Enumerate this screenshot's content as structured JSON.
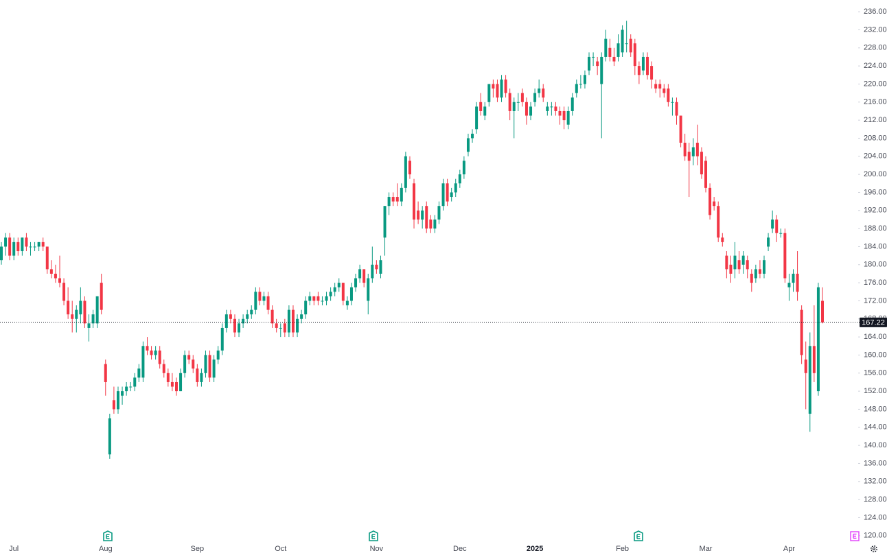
{
  "chart_data": {
    "type": "candlestick",
    "up_color": "#089981",
    "down_color": "#f23645",
    "grid": false,
    "ylim": [
      118.6,
      238.6
    ],
    "yticks": [
      {
        "value": 120,
        "label": "120.00"
      },
      {
        "value": 124,
        "label": "124.00"
      },
      {
        "value": 128,
        "label": "128.00"
      },
      {
        "value": 132,
        "label": "132.00"
      },
      {
        "value": 136,
        "label": "136.00"
      },
      {
        "value": 140,
        "label": "140.00"
      },
      {
        "value": 144,
        "label": "144.00"
      },
      {
        "value": 148,
        "label": "148.00"
      },
      {
        "value": 152,
        "label": "152.00"
      },
      {
        "value": 156,
        "label": "156.00"
      },
      {
        "value": 160,
        "label": "160.00"
      },
      {
        "value": 164,
        "label": "164.00"
      },
      {
        "value": 168,
        "label": "168.00"
      },
      {
        "value": 172,
        "label": "172.00"
      },
      {
        "value": 176,
        "label": "176.00"
      },
      {
        "value": 180,
        "label": "180.00"
      },
      {
        "value": 184,
        "label": "184.00"
      },
      {
        "value": 188,
        "label": "188.00"
      },
      {
        "value": 192,
        "label": "192.00"
      },
      {
        "value": 196,
        "label": "196.00"
      },
      {
        "value": 200,
        "label": "200.00"
      },
      {
        "value": 204,
        "label": "204.00"
      },
      {
        "value": 208,
        "label": "208.00"
      },
      {
        "value": 212,
        "label": "212.00"
      },
      {
        "value": 216,
        "label": "216.00"
      },
      {
        "value": 220,
        "label": "220.00"
      },
      {
        "value": 224,
        "label": "224.00"
      },
      {
        "value": 228,
        "label": "228.00"
      },
      {
        "value": 232,
        "label": "232.00"
      },
      {
        "value": 236,
        "label": "236.00"
      }
    ],
    "categories": [
      null,
      null,
      null,
      "Jul",
      null,
      null,
      null,
      null,
      null,
      null,
      null,
      null,
      null,
      null,
      null,
      null,
      null,
      null,
      null,
      null,
      null,
      null,
      null,
      null,
      null,
      "Aug",
      null,
      null,
      null,
      null,
      null,
      null,
      null,
      null,
      null,
      null,
      null,
      null,
      null,
      null,
      null,
      null,
      null,
      null,
      null,
      null,
      null,
      "Sep",
      null,
      null,
      null,
      null,
      null,
      null,
      null,
      null,
      null,
      null,
      null,
      null,
      null,
      null,
      null,
      null,
      null,
      null,
      null,
      "Oct",
      null,
      null,
      null,
      null,
      null,
      null,
      null,
      null,
      null,
      null,
      null,
      null,
      null,
      null,
      null,
      null,
      null,
      null,
      null,
      null,
      null,
      null,
      "Nov",
      null,
      null,
      null,
      null,
      null,
      null,
      null,
      null,
      null,
      null,
      null,
      null,
      null,
      null,
      null,
      null,
      null,
      null,
      null,
      "Dec",
      null,
      null,
      null,
      null,
      null,
      null,
      null,
      null,
      null,
      null,
      null,
      null,
      null,
      null,
      null,
      null,
      null,
      "2025",
      null,
      null,
      null,
      null,
      null,
      null,
      null,
      null,
      null,
      null,
      null,
      null,
      null,
      null,
      null,
      null,
      null,
      null,
      null,
      null,
      "Feb",
      null,
      null,
      null,
      null,
      null,
      null,
      null,
      null,
      null,
      null,
      null,
      null,
      null,
      null,
      null,
      null,
      null,
      null,
      null,
      "Mar",
      null,
      null,
      null,
      null,
      null,
      null,
      null,
      null,
      null,
      null,
      null,
      null,
      null,
      null,
      null,
      null,
      null,
      null,
      null,
      "Apr",
      null,
      null,
      null,
      null,
      null,
      null,
      null,
      null
    ],
    "ohlc": [
      [
        181,
        185,
        180,
        184
      ],
      [
        184,
        187,
        182,
        186
      ],
      [
        186,
        187,
        181,
        182
      ],
      [
        182,
        186,
        181,
        185
      ],
      [
        185,
        186,
        182,
        183
      ],
      [
        183,
        186,
        182,
        186
      ],
      [
        186,
        187,
        183,
        184
      ],
      [
        184,
        185,
        182,
        184
      ],
      [
        184,
        185,
        183,
        184
      ],
      [
        184,
        185,
        183,
        185
      ],
      [
        185,
        186,
        183,
        184
      ],
      [
        184,
        184,
        178,
        179
      ],
      [
        179,
        181,
        177,
        178
      ],
      [
        178,
        180,
        176,
        177
      ],
      [
        177,
        182,
        175,
        176
      ],
      [
        176,
        177,
        171,
        172
      ],
      [
        172,
        175,
        168,
        169
      ],
      [
        169,
        172,
        165,
        168
      ],
      [
        168,
        171,
        165,
        170
      ],
      [
        169,
        175,
        167,
        172
      ],
      [
        172,
        173,
        166,
        167
      ],
      [
        166,
        169,
        163,
        167
      ],
      [
        167,
        170,
        166,
        169
      ],
      [
        167,
        173,
        166,
        173
      ],
      [
        176,
        178,
        169,
        170
      ],
      [
        158,
        159,
        151,
        154
      ],
      [
        138,
        147,
        137,
        146
      ],
      [
        150,
        153,
        147,
        148
      ],
      [
        148,
        153,
        147,
        152
      ],
      [
        151,
        153,
        149,
        152
      ],
      [
        152,
        154,
        151,
        153
      ],
      [
        153,
        154,
        152,
        153
      ],
      [
        153,
        156,
        152,
        155
      ],
      [
        155,
        158,
        154,
        157
      ],
      [
        155,
        163,
        154,
        162
      ],
      [
        162,
        164,
        160,
        161
      ],
      [
        161,
        162,
        159,
        160
      ],
      [
        160,
        162,
        159,
        161
      ],
      [
        161,
        162,
        157,
        158
      ],
      [
        158,
        159,
        155,
        156
      ],
      [
        156,
        157,
        153,
        154
      ],
      [
        154,
        156,
        152,
        153
      ],
      [
        154,
        155,
        151,
        152
      ],
      [
        152,
        157,
        152,
        156
      ],
      [
        156,
        161,
        155,
        160
      ],
      [
        160,
        161,
        158,
        159
      ],
      [
        159,
        160,
        156,
        157
      ],
      [
        157,
        158,
        153,
        154
      ],
      [
        154,
        157,
        153,
        156
      ],
      [
        156,
        161,
        155,
        160
      ],
      [
        160,
        161,
        154,
        155
      ],
      [
        155,
        160,
        154,
        159
      ],
      [
        159,
        162,
        158,
        161
      ],
      [
        161,
        167,
        160,
        166
      ],
      [
        166,
        170,
        165,
        169
      ],
      [
        169,
        170,
        167,
        168
      ],
      [
        168,
        169,
        164,
        165
      ],
      [
        165,
        168,
        164,
        167
      ],
      [
        167,
        169,
        166,
        168
      ],
      [
        168,
        170,
        167,
        169
      ],
      [
        169,
        171,
        168,
        170
      ],
      [
        170,
        175,
        169,
        174
      ],
      [
        174,
        175,
        171,
        172
      ],
      [
        172,
        174,
        171,
        173
      ],
      [
        173,
        174,
        169,
        170
      ],
      [
        170,
        171,
        166,
        167
      ],
      [
        167,
        168,
        165,
        166
      ],
      [
        166,
        167,
        164,
        166
      ],
      [
        167,
        168,
        164,
        165
      ],
      [
        165,
        171,
        164,
        170
      ],
      [
        170,
        171,
        164,
        165
      ],
      [
        165,
        169,
        164,
        168
      ],
      [
        168,
        170,
        167,
        169
      ],
      [
        169,
        173,
        168,
        172
      ],
      [
        172,
        174,
        171,
        173
      ],
      [
        173,
        173,
        171,
        172
      ],
      [
        173,
        174,
        171,
        172
      ],
      [
        172,
        173,
        171,
        172
      ],
      [
        172,
        174,
        171,
        173
      ],
      [
        173,
        175,
        172,
        174
      ],
      [
        174,
        176,
        173,
        175
      ],
      [
        175,
        177,
        174,
        176
      ],
      [
        176,
        176,
        171,
        172
      ],
      [
        171,
        173,
        170,
        172
      ],
      [
        172,
        176,
        171,
        175
      ],
      [
        175,
        178,
        174,
        177
      ],
      [
        177,
        180,
        176,
        179
      ],
      [
        179,
        179,
        175,
        176
      ],
      [
        172,
        178,
        169,
        177
      ],
      [
        177,
        184,
        176,
        180
      ],
      [
        180,
        181,
        178,
        179
      ],
      [
        178,
        182,
        177,
        181
      ],
      [
        186,
        193,
        182,
        193
      ],
      [
        193,
        196,
        191,
        195
      ],
      [
        195,
        196,
        193,
        194
      ],
      [
        195,
        198,
        193,
        194
      ],
      [
        194,
        198,
        193,
        197
      ],
      [
        197,
        205,
        196,
        204
      ],
      [
        203,
        204,
        199,
        200
      ],
      [
        198,
        199,
        188,
        190
      ],
      [
        192,
        194,
        189,
        190
      ],
      [
        190,
        193,
        188,
        192
      ],
      [
        193,
        194,
        187,
        188
      ],
      [
        190,
        191,
        187,
        188
      ],
      [
        188,
        191,
        187,
        190
      ],
      [
        190,
        194,
        189,
        193
      ],
      [
        193,
        199,
        192,
        198
      ],
      [
        198,
        199,
        193,
        194
      ],
      [
        195,
        197,
        194,
        196
      ],
      [
        196,
        199,
        195,
        198
      ],
      [
        198,
        201,
        197,
        200
      ],
      [
        200,
        204,
        199,
        203
      ],
      [
        205,
        209,
        204,
        208
      ],
      [
        208,
        210,
        207,
        209
      ],
      [
        210,
        216,
        209,
        215
      ],
      [
        216,
        218,
        213,
        214
      ],
      [
        213,
        216,
        212,
        215
      ],
      [
        216,
        220,
        215,
        220
      ],
      [
        220,
        221,
        217,
        219
      ],
      [
        220,
        221,
        216,
        217
      ],
      [
        217,
        222,
        216,
        221
      ],
      [
        221,
        222,
        217,
        218
      ],
      [
        218,
        219,
        212,
        214
      ],
      [
        214,
        217,
        208,
        216
      ],
      [
        216,
        218,
        214,
        216
      ],
      [
        218,
        219,
        215,
        216
      ],
      [
        216,
        217,
        211,
        213
      ],
      [
        213,
        216,
        212,
        215
      ],
      [
        216,
        219,
        215,
        218
      ],
      [
        218,
        221,
        217,
        219
      ],
      [
        219,
        220,
        216,
        217
      ],
      [
        214,
        216,
        213,
        215
      ],
      [
        215,
        216,
        213,
        215
      ],
      [
        215,
        216,
        213,
        214
      ],
      [
        214,
        215,
        211,
        213
      ],
      [
        214,
        215,
        210,
        212
      ],
      [
        211,
        215,
        210,
        214
      ],
      [
        214,
        218,
        213,
        217
      ],
      [
        218,
        221,
        217,
        220
      ],
      [
        220,
        222,
        219,
        220
      ],
      [
        220,
        223,
        219,
        222
      ],
      [
        223,
        227,
        222,
        226
      ],
      [
        226,
        227,
        224,
        226
      ],
      [
        225,
        226,
        222,
        224
      ],
      [
        220,
        227,
        208,
        226
      ],
      [
        226,
        232,
        225,
        230
      ],
      [
        228,
        230,
        225,
        226
      ],
      [
        226,
        228,
        224,
        225
      ],
      [
        226,
        231,
        225,
        229
      ],
      [
        227,
        233,
        226,
        232
      ],
      [
        229,
        234,
        227,
        229
      ],
      [
        230,
        231,
        226,
        227
      ],
      [
        229,
        230,
        222,
        224
      ],
      [
        224,
        225,
        220,
        222
      ],
      [
        223,
        227,
        222,
        226
      ],
      [
        226,
        227,
        221,
        222
      ],
      [
        224,
        225,
        219,
        221
      ],
      [
        220,
        221,
        218,
        219
      ],
      [
        220,
        221,
        217,
        219
      ],
      [
        219,
        220,
        217,
        218
      ],
      [
        219,
        220,
        215,
        216
      ],
      [
        216,
        217,
        213,
        216
      ],
      [
        216,
        217,
        211,
        213
      ],
      [
        213,
        213,
        206,
        207
      ],
      [
        207,
        209,
        203,
        204
      ],
      [
        205,
        207,
        195,
        203
      ],
      [
        204,
        208,
        202,
        206
      ],
      [
        207,
        211,
        202,
        204
      ],
      [
        205,
        206,
        199,
        200
      ],
      [
        203,
        204,
        196,
        197
      ],
      [
        197,
        198,
        190,
        191
      ],
      [
        194,
        195,
        192,
        193
      ],
      [
        193,
        194,
        185,
        186
      ],
      [
        186,
        187,
        184,
        185
      ],
      [
        182,
        183,
        177,
        179
      ],
      [
        180,
        182,
        176,
        178
      ],
      [
        179,
        185,
        177,
        182
      ],
      [
        181,
        183,
        178,
        179
      ],
      [
        180,
        183,
        178,
        182
      ],
      [
        181,
        182,
        177,
        179
      ],
      [
        178,
        179,
        174,
        176
      ],
      [
        177,
        180,
        176,
        179
      ],
      [
        179,
        181,
        177,
        178
      ],
      [
        178,
        182,
        177,
        181
      ],
      [
        184,
        187,
        183,
        186
      ],
      [
        188,
        192,
        187,
        190
      ],
      [
        190,
        191,
        185,
        187
      ],
      [
        187,
        188,
        186,
        187
      ],
      [
        187,
        188,
        176,
        177
      ],
      [
        175,
        178,
        172,
        176
      ],
      [
        176,
        179,
        174,
        178
      ],
      [
        178,
        183,
        172,
        174
      ],
      [
        170,
        171,
        158,
        160
      ],
      [
        159,
        163,
        148,
        156
      ],
      [
        147,
        165,
        143,
        162
      ],
      [
        162,
        171,
        154,
        156
      ],
      [
        152,
        176,
        151,
        175
      ],
      [
        172,
        175,
        167,
        167.22
      ]
    ]
  }
}
